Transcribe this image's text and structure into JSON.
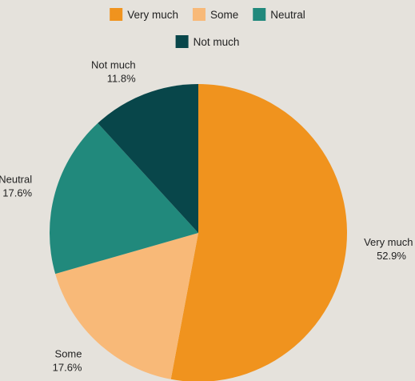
{
  "chart_data": {
    "type": "pie",
    "title": "",
    "legend_position": "top",
    "slices": [
      {
        "label": "Very much",
        "value": 52.9,
        "display": "52.9%",
        "color": "#f0931e"
      },
      {
        "label": "Some",
        "value": 17.6,
        "display": "17.6%",
        "color": "#f8b978"
      },
      {
        "label": "Neutral",
        "value": 17.6,
        "display": "17.6%",
        "color": "#21897c"
      },
      {
        "label": "Not much",
        "value": 11.8,
        "display": "11.8%",
        "color": "#08464a"
      }
    ]
  }
}
